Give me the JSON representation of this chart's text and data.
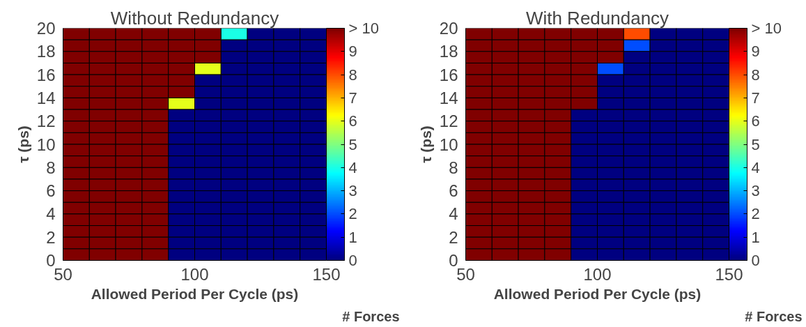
{
  "chart_data": [
    {
      "type": "heatmap",
      "title": "Without Redundancy",
      "xlabel": "Allowed Period Per Cycle (ps)",
      "ylabel": "τ (ps)",
      "clabel": "# Forces",
      "x": [
        55,
        65,
        75,
        85,
        95,
        105,
        115,
        125,
        135,
        145
      ],
      "y": [
        19.5,
        18.5,
        17.5,
        16.5,
        15.5,
        14.5,
        13.5,
        12.5,
        11.5,
        10.5,
        9.5,
        8.5,
        7.5,
        6.5,
        5.5,
        4.5,
        3.5,
        2.5,
        1.5,
        0.5
      ],
      "xlim": [
        50,
        150
      ],
      "xticks": [
        50,
        100,
        150
      ],
      "ylim": [
        0,
        20
      ],
      "yticks": [
        0,
        2,
        4,
        6,
        8,
        10,
        12,
        14,
        16,
        18,
        20
      ],
      "clim": [
        0,
        10
      ],
      "cticks": [
        0,
        1,
        2,
        3,
        4,
        5,
        6,
        7,
        8,
        9,
        {
          "value": 10,
          "label": "> 10"
        }
      ],
      "cells": [
        [
          10,
          10,
          10,
          10,
          10,
          10,
          4,
          0,
          0,
          0
        ],
        [
          10,
          10,
          10,
          10,
          10,
          10,
          0,
          0,
          0,
          0
        ],
        [
          10,
          10,
          10,
          10,
          10,
          10,
          0,
          0,
          0,
          0
        ],
        [
          10,
          10,
          10,
          10,
          10,
          6,
          0,
          0,
          0,
          0
        ],
        [
          10,
          10,
          10,
          10,
          10,
          0,
          0,
          0,
          0,
          0
        ],
        [
          10,
          10,
          10,
          10,
          10,
          0,
          0,
          0,
          0,
          0
        ],
        [
          10,
          10,
          10,
          10,
          6,
          0,
          0,
          0,
          0,
          0
        ],
        [
          10,
          10,
          10,
          10,
          0,
          0,
          0,
          0,
          0,
          0
        ],
        [
          10,
          10,
          10,
          10,
          0,
          0,
          0,
          0,
          0,
          0
        ],
        [
          10,
          10,
          10,
          10,
          0,
          0,
          0,
          0,
          0,
          0
        ],
        [
          10,
          10,
          10,
          10,
          0,
          0,
          0,
          0,
          0,
          0
        ],
        [
          10,
          10,
          10,
          10,
          0,
          0,
          0,
          0,
          0,
          0
        ],
        [
          10,
          10,
          10,
          10,
          0,
          0,
          0,
          0,
          0,
          0
        ],
        [
          10,
          10,
          10,
          10,
          0,
          0,
          0,
          0,
          0,
          0
        ],
        [
          10,
          10,
          10,
          10,
          0,
          0,
          0,
          0,
          0,
          0
        ],
        [
          10,
          10,
          10,
          10,
          0,
          0,
          0,
          0,
          0,
          0
        ],
        [
          10,
          10,
          10,
          10,
          0,
          0,
          0,
          0,
          0,
          0
        ],
        [
          10,
          10,
          10,
          10,
          0,
          0,
          0,
          0,
          0,
          0
        ],
        [
          10,
          10,
          10,
          10,
          0,
          0,
          0,
          0,
          0,
          0
        ],
        [
          10,
          10,
          10,
          10,
          0,
          0,
          0,
          0,
          0,
          0
        ]
      ]
    },
    {
      "type": "heatmap",
      "title": "With Redundancy",
      "xlabel": "Allowed Period Per Cycle (ps)",
      "ylabel": "τ (ps)",
      "clabel": "# Forces",
      "x": [
        55,
        65,
        75,
        85,
        95,
        105,
        115,
        125,
        135,
        145
      ],
      "y": [
        19.5,
        18.5,
        17.5,
        16.5,
        15.5,
        14.5,
        13.5,
        12.5,
        11.5,
        10.5,
        9.5,
        8.5,
        7.5,
        6.5,
        5.5,
        4.5,
        3.5,
        2.5,
        1.5,
        0.5
      ],
      "xlim": [
        50,
        150
      ],
      "xticks": [
        50,
        100,
        150
      ],
      "ylim": [
        0,
        20
      ],
      "yticks": [
        0,
        2,
        4,
        6,
        8,
        10,
        12,
        14,
        16,
        18,
        20
      ],
      "clim": [
        0,
        10
      ],
      "cticks": [
        0,
        1,
        2,
        3,
        4,
        5,
        6,
        7,
        8,
        9,
        {
          "value": 10,
          "label": "> 10"
        }
      ],
      "cells": [
        [
          10,
          10,
          10,
          10,
          10,
          10,
          8,
          0,
          0,
          0
        ],
        [
          10,
          10,
          10,
          10,
          10,
          10,
          2,
          0,
          0,
          0
        ],
        [
          10,
          10,
          10,
          10,
          10,
          10,
          0,
          0,
          0,
          0
        ],
        [
          10,
          10,
          10,
          10,
          10,
          2,
          0,
          0,
          0,
          0
        ],
        [
          10,
          10,
          10,
          10,
          10,
          0,
          0,
          0,
          0,
          0
        ],
        [
          10,
          10,
          10,
          10,
          10,
          0,
          0,
          0,
          0,
          0
        ],
        [
          10,
          10,
          10,
          10,
          10,
          0,
          0,
          0,
          0,
          0
        ],
        [
          10,
          10,
          10,
          10,
          0,
          0,
          0,
          0,
          0,
          0
        ],
        [
          10,
          10,
          10,
          10,
          0,
          0,
          0,
          0,
          0,
          0
        ],
        [
          10,
          10,
          10,
          10,
          0,
          0,
          0,
          0,
          0,
          0
        ],
        [
          10,
          10,
          10,
          10,
          0,
          0,
          0,
          0,
          0,
          0
        ],
        [
          10,
          10,
          10,
          10,
          0,
          0,
          0,
          0,
          0,
          0
        ],
        [
          10,
          10,
          10,
          10,
          0,
          0,
          0,
          0,
          0,
          0
        ],
        [
          10,
          10,
          10,
          10,
          0,
          0,
          0,
          0,
          0,
          0
        ],
        [
          10,
          10,
          10,
          10,
          0,
          0,
          0,
          0,
          0,
          0
        ],
        [
          10,
          10,
          10,
          10,
          0,
          0,
          0,
          0,
          0,
          0
        ],
        [
          10,
          10,
          10,
          10,
          0,
          0,
          0,
          0,
          0,
          0
        ],
        [
          10,
          10,
          10,
          10,
          0,
          0,
          0,
          0,
          0,
          0
        ],
        [
          10,
          10,
          10,
          10,
          0,
          0,
          0,
          0,
          0,
          0
        ],
        [
          10,
          10,
          10,
          10,
          0,
          0,
          0,
          0,
          0,
          0
        ]
      ]
    }
  ]
}
